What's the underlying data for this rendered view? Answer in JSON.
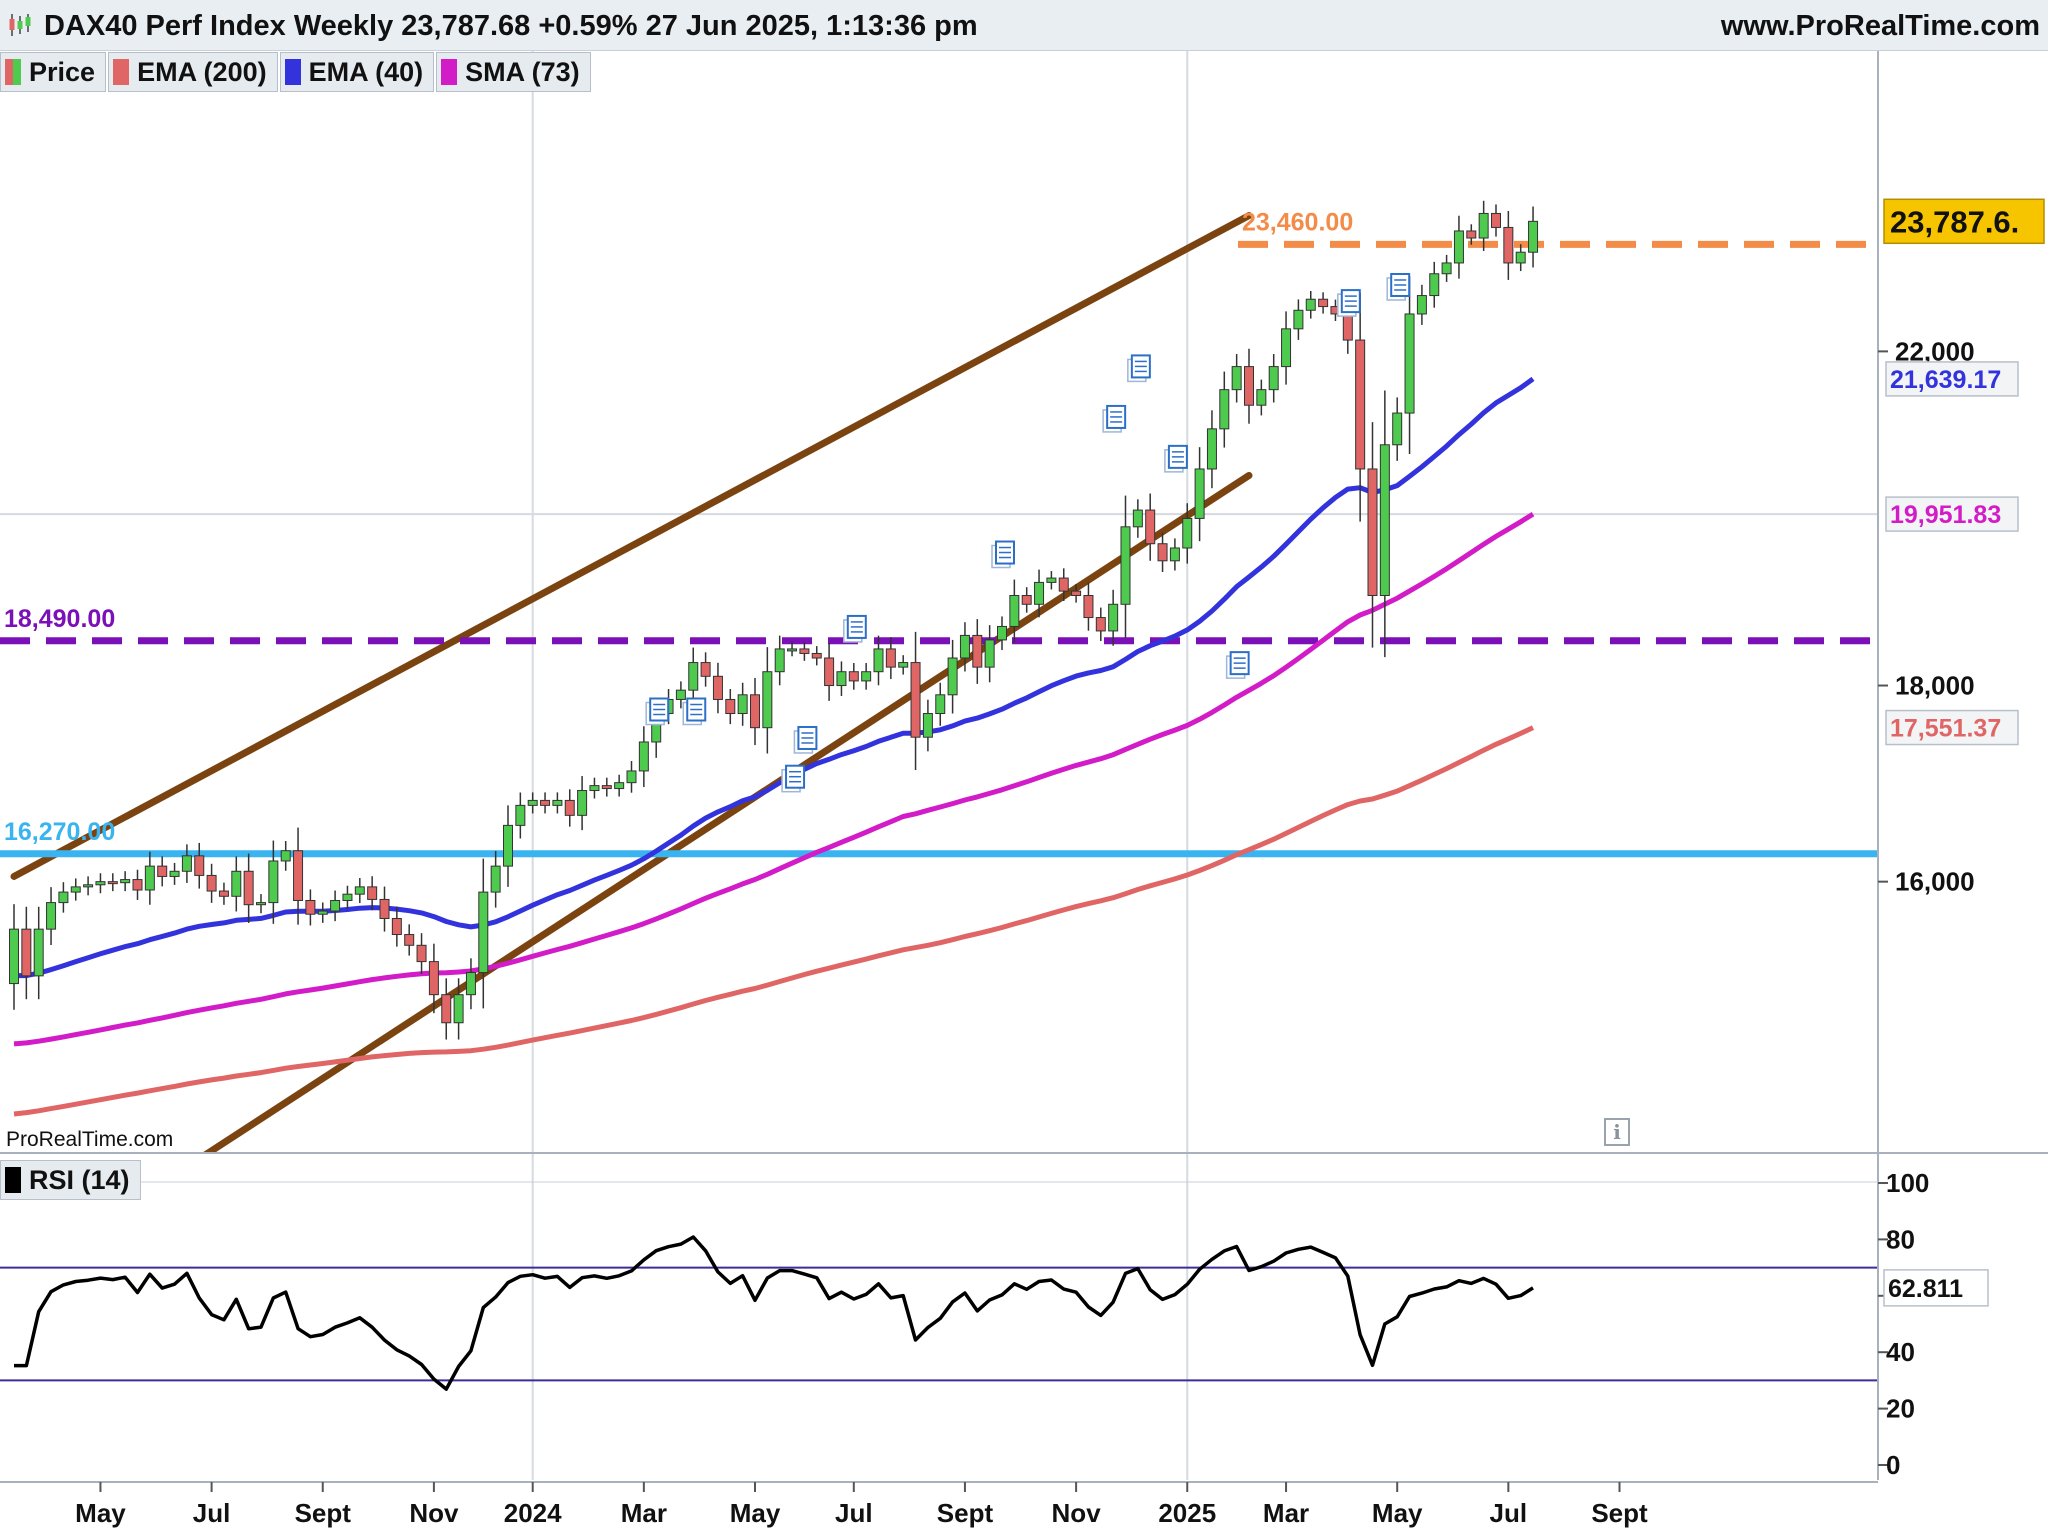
{
  "header": {
    "title": "DAX40 Perf Index Weekly 23,787.68 +0.59% 27 Jun 2025, 1:13:36 pm",
    "site": "www.ProRealTime.com",
    "logo_icon": "candlestick-logo-icon"
  },
  "legend": {
    "price": {
      "label": "Price",
      "icon": "price-candle-swatch-icon"
    },
    "ema200": {
      "label": "EMA (200)",
      "color": "#e06666"
    },
    "ema40": {
      "label": "EMA (40)",
      "color": "#3333dd"
    },
    "sma73": {
      "label": "SMA (73)",
      "color": "#d21cc8"
    }
  },
  "watermark": "ProRealTime.com",
  "info_icon": "info-icon",
  "chart_data": [
    {
      "type": "candlestick",
      "title": "DAX40 Perf Index Weekly",
      "ylim": [
        14000,
        24650
      ],
      "scale": "linear",
      "grid": true,
      "y_ticks": [
        16000,
        18000,
        22000
      ],
      "y_tick_labels": [
        "16,000",
        "18,000",
        "22,000"
      ],
      "x_labels": [
        {
          "label": "May",
          "w": 7
        },
        {
          "label": "Jul",
          "w": 16
        },
        {
          "label": "Sept",
          "w": 25
        },
        {
          "label": "Nov",
          "w": 34
        },
        {
          "label": "2024",
          "w": 42
        },
        {
          "label": "Mar",
          "w": 51
        },
        {
          "label": "May",
          "w": 60
        },
        {
          "label": "Jul",
          "w": 68
        },
        {
          "label": "Sept",
          "w": 77
        },
        {
          "label": "Nov",
          "w": 86
        },
        {
          "label": "2025",
          "w": 95
        },
        {
          "label": "Mar",
          "w": 103
        },
        {
          "label": "May",
          "w": 112
        },
        {
          "label": "Jul",
          "w": 121
        },
        {
          "label": "Sept",
          "w": 130
        }
      ],
      "vertical_separators_w": [
        42,
        95
      ],
      "colors": {
        "up": "#4ecb4e",
        "down": "#e06666"
      },
      "closes": [
        15550,
        15120,
        15550,
        15800,
        15900,
        15950,
        15970,
        16000,
        15990,
        16020,
        15920,
        16150,
        16050,
        16100,
        16250,
        16060,
        15910,
        15860,
        16100,
        15780,
        15800,
        16200,
        16300,
        15820,
        15690,
        15720,
        15820,
        15880,
        15950,
        15830,
        15650,
        15500,
        15400,
        15250,
        14950,
        14700,
        14950,
        15150,
        15900,
        16150,
        16550,
        16750,
        16800,
        16750,
        16800,
        16650,
        16900,
        16950,
        16920,
        16980,
        17100,
        17400,
        17700,
        17850,
        17950,
        18250,
        18100,
        17850,
        17700,
        17900,
        17550,
        18150,
        18400,
        18400,
        18350,
        18300,
        18000,
        18150,
        18050,
        18150,
        18400,
        18200,
        18250,
        17450,
        17700,
        17900,
        18300,
        18550,
        18200,
        18500,
        18650,
        19000,
        18900,
        19150,
        19200,
        19050,
        19000,
        18750,
        18600,
        18900,
        19800,
        20000,
        19600,
        19400,
        19550,
        19900,
        20500,
        21000,
        21500,
        21800,
        21300,
        21500,
        21800,
        22300,
        22550,
        22700,
        22600,
        22500,
        22150,
        20500,
        19000,
        20800,
        21200,
        22500,
        22750,
        23050,
        23200,
        23650,
        23550,
        23900,
        23700,
        23200,
        23350,
        23787
      ],
      "overlays": {
        "ema200": {
          "name": "EMA (200)",
          "last": 17551.37,
          "last_label": "17,551.37",
          "color": "#e06666"
        },
        "ema40": {
          "name": "EMA (40)",
          "last": 21639.17,
          "last_label": "21,639.17",
          "color": "#3333dd"
        },
        "sma73": {
          "name": "SMA (73)",
          "last": 19951.83,
          "last_label": "19,951.83",
          "color": "#d21cc8"
        }
      },
      "last_price": {
        "value": 23787.68,
        "label": "23,787.6."
      },
      "horizontal_levels": [
        {
          "value": 23460,
          "label": "23,460.00",
          "color": "#f28c48",
          "style": "dashed"
        },
        {
          "value": 18490,
          "label": "18,490.00",
          "color": "#7b0fb8",
          "style": "dashed"
        },
        {
          "value": 16270,
          "label": "16,270.00",
          "color": "#39b4f0",
          "style": "solid"
        }
      ],
      "channel": {
        "color": "#7a4310",
        "upper": [
          [
            0,
            16050
          ],
          [
            100,
            23870
          ]
        ],
        "lower": [
          [
            0,
            12600
          ],
          [
            100,
            20420
          ]
        ]
      },
      "news_markers": [
        {
          "w": 52,
          "price": 17700
        },
        {
          "w": 55,
          "price": 17700
        },
        {
          "w": 63,
          "price": 17000
        },
        {
          "w": 64,
          "price": 17400
        },
        {
          "w": 68,
          "price": 18600
        },
        {
          "w": 80,
          "price": 19450
        },
        {
          "w": 89,
          "price": 21100
        },
        {
          "w": 91,
          "price": 21750
        },
        {
          "w": 94,
          "price": 20600
        },
        {
          "w": 99,
          "price": 18200
        },
        {
          "w": 108,
          "price": 22620
        },
        {
          "w": 112,
          "price": 22840
        }
      ]
    },
    {
      "type": "line",
      "title": "RSI (14)",
      "ylim": [
        0,
        100
      ],
      "ticks": [
        0,
        20,
        40,
        60,
        80,
        100
      ],
      "overbought": 70,
      "oversold": 30,
      "last_label": "62.811",
      "color": "#000000"
    }
  ],
  "rsi_legend": {
    "label": "RSI (14)"
  }
}
